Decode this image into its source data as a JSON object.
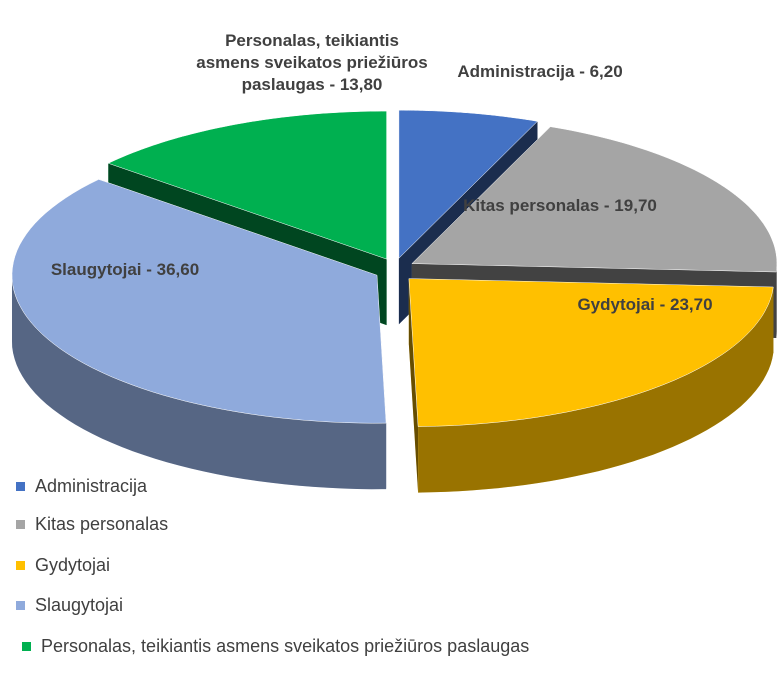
{
  "chart_data": {
    "type": "pie",
    "categories": [
      "Administracija",
      "Kitas personalas",
      "Gydytojai",
      "Slaugytojai",
      "Personalas, teikiantis asmens sveikatos priežiūros paslaugas"
    ],
    "values": [
      6.2,
      19.7,
      23.7,
      36.6,
      13.8
    ],
    "value_labels": [
      "Administracija - 6,20",
      "Kitas personalas - 19,70",
      "Gydytojai - 23,70",
      "Slaugytojai - 36,60",
      "Personalas, teikiantis asmens sveikatos priežiūros paslaugas - 13,80"
    ],
    "colors": [
      "#4472c4",
      "#a5a5a5",
      "#ffc000",
      "#8faadc",
      "#00b050"
    ],
    "legend": "bottom-left"
  }
}
